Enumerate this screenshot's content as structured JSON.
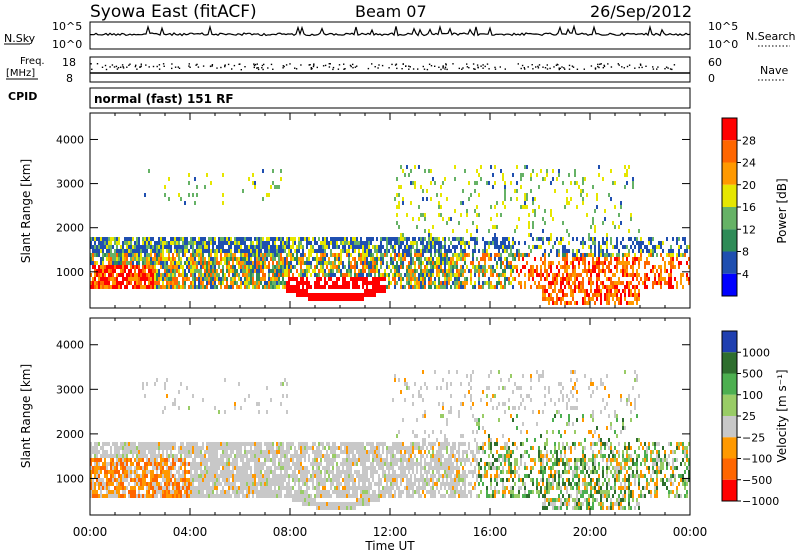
{
  "header": {
    "site": "Syowa East (fitACF)",
    "beam": "Beam 07",
    "date": "26/Sep/2012"
  },
  "top_panels": {
    "nsky_label": "N.Sky",
    "nsky_ticks": [
      "10^5",
      "10^0"
    ],
    "nsearch_label": "N.Search",
    "nsearch_ticks": [
      "10^5",
      "10^0"
    ],
    "freq_label": "Freq.",
    "freq_unit": "[MHz]",
    "freq_ticks": [
      "18",
      "8"
    ],
    "nave_label": "Nave",
    "nave_ticks": [
      "60",
      "0"
    ],
    "cpid_label": "CPID",
    "cpid_value": "normal (fast) 151 RF"
  },
  "colors": {
    "power": [
      "#0000ff",
      "#1f4fb0",
      "#2e8b57",
      "#66b266",
      "#e6e600",
      "#ff9900",
      "#ff6600",
      "#ff0000"
    ],
    "velocity": [
      "#1f3fb0",
      "#2e6e2e",
      "#4caf50",
      "#99cc66",
      "#c8c8c8",
      "#ff9900",
      "#ff6600",
      "#ff0000"
    ]
  },
  "chart_data": [
    {
      "type": "heatmap",
      "name": "power",
      "ylabel": "Slant Range [km]",
      "ylim": [
        180,
        4600
      ],
      "yticks": [
        1000,
        2000,
        3000,
        4000
      ],
      "xlim": [
        0,
        24
      ],
      "xtick_labels": [
        "00:00",
        "04:00",
        "08:00",
        "12:00",
        "16:00",
        "20:00",
        "00:00"
      ],
      "colorbar_label": "Power [dB]",
      "colorbar_ticks": [
        "4",
        "8",
        "12",
        "16",
        "20",
        "24",
        "28"
      ]
    },
    {
      "type": "heatmap",
      "name": "velocity",
      "ylabel": "Slant Range [km]",
      "xlabel": "Time UT",
      "ylim": [
        180,
        4600
      ],
      "yticks": [
        1000,
        2000,
        3000,
        4000
      ],
      "xlim": [
        0,
        24
      ],
      "xtick_labels": [
        "00:00",
        "04:00",
        "08:00",
        "12:00",
        "16:00",
        "20:00",
        "00:00"
      ],
      "colorbar_label": "Velocity [m s⁻¹]",
      "colorbar_ticks": [
        "1000",
        "500",
        "100",
        "25",
        "−25",
        "−100",
        "−500",
        "−1000"
      ]
    }
  ]
}
